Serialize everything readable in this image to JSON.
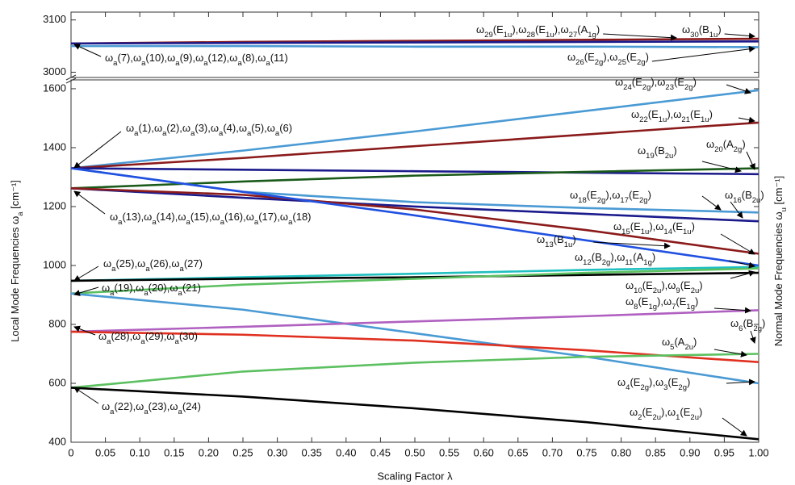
{
  "chart_data": [
    {
      "type": "line",
      "x": [
        0,
        0.25,
        0.5,
        0.75,
        1
      ],
      "xlim": [
        0,
        1
      ],
      "ylim": [
        2990,
        3115
      ],
      "yticks": [
        3000,
        3100
      ],
      "series": [
        {
          "color": "#8b1a1a",
          "values": [
            3055,
            3058,
            3060,
            3062,
            3064
          ]
        },
        {
          "color": "#1a1a8c",
          "values": [
            3055,
            3056,
            3057,
            3058,
            3059
          ]
        },
        {
          "color": "#4a9ad4",
          "values": [
            3050,
            3050,
            3049,
            3049,
            3048
          ]
        }
      ],
      "annotations": [
        "ω29(E1u),ω28(E1u),ω27(A1g)",
        "ω30(B1u)",
        "ωa(7),ωa(10),ωa(9),ωa(12),ωa(8),ωa(11)",
        "ω26(E2g),ω25(E2g)"
      ]
    },
    {
      "type": "line",
      "x": [
        0,
        0.25,
        0.5,
        0.75,
        1
      ],
      "xlim": [
        0,
        1
      ],
      "ylim": [
        400,
        1630
      ],
      "yticks": [
        400,
        600,
        800,
        1000,
        1200,
        1400,
        1600
      ],
      "xticks": [
        0,
        0.05,
        {
          "value": 0.1,
          "label": "0.10"
        },
        0.15,
        {
          "value": 0.2,
          "label": "0.20"
        },
        0.25,
        {
          "value": 0.3,
          "label": "0.30"
        },
        0.35,
        {
          "value": 0.4,
          "label": "0.40"
        },
        0.45,
        {
          "value": 0.5,
          "label": "0.50"
        },
        0.55,
        {
          "value": 0.6,
          "label": "0.60"
        },
        0.65,
        {
          "value": 0.7,
          "label": "0.70"
        },
        0.75,
        {
          "value": 0.8,
          "label": "0.80"
        },
        0.85,
        {
          "value": 0.9,
          "label": "0.90"
        },
        0.95,
        {
          "value": 1,
          "label": "1.00"
        }
      ],
      "x_label": "Scaling Factor λ",
      "y_label": "Local Mode Frequencies ωa [cm⁻¹]",
      "y2_label": "Normal Mode Frequencies ωu [cm⁻¹]",
      "series": [
        {
          "color": "#4a9ad4",
          "values": [
            1330,
            1390,
            1455,
            1525,
            1595
          ]
        },
        {
          "color": "#8b1a1a",
          "values": [
            1330,
            1365,
            1405,
            1445,
            1485
          ]
        },
        {
          "color": "#1a1a8c",
          "values": [
            1330,
            1325,
            1320,
            1315,
            1310
          ]
        },
        {
          "color": "#1a5a1a",
          "values": [
            1262,
            1285,
            1305,
            1318,
            1330
          ]
        },
        {
          "color": "#4a9ad4",
          "values": [
            1330,
            1250,
            1215,
            1195,
            1180
          ]
        },
        {
          "color": "#1a1a8c",
          "values": [
            1262,
            1230,
            1200,
            1175,
            1150
          ]
        },
        {
          "color": "#8b1a1a",
          "values": [
            1262,
            1240,
            1190,
            1120,
            1040
          ]
        },
        {
          "color": "#2050e0",
          "values": [
            1330,
            1250,
            1170,
            1085,
            1000
          ]
        },
        {
          "color": "#20c0c0",
          "values": [
            948,
            960,
            972,
            985,
            995
          ]
        },
        {
          "color": "#000000",
          "values": [
            948,
            955,
            960,
            968,
            975
          ]
        },
        {
          "color": "#5cc060",
          "values": [
            905,
            935,
            955,
            975,
            990
          ]
        },
        {
          "color": "#4a9ad4",
          "values": [
            905,
            850,
            770,
            690,
            600
          ]
        },
        {
          "color": "#b060c0",
          "values": [
            775,
            792,
            810,
            828,
            848
          ]
        },
        {
          "color": "#e03020",
          "values": [
            775,
            765,
            745,
            712,
            672
          ]
        },
        {
          "color": "#5cc060",
          "values": [
            585,
            640,
            670,
            690,
            700
          ]
        },
        {
          "color": "#000000",
          "values": [
            585,
            555,
            515,
            468,
            410
          ]
        }
      ],
      "annotations": [
        "ω24(E2g),ω23(E2g)",
        "ω22(E1u),ω21(E1u)",
        "ωa(1),ωa(2),ωa(3),ωa(4),ωa(5),ωa(6)",
        "ω20(A2g)",
        "ω19(B2u)",
        "ω18(E2g),ω17(E2g)",
        "ω16(B2u)",
        "ωa(13),ωa(14),ωa(15),ωa(16),ωa(17),ωa(18)",
        "ω15(E1u),ω14(E1u)",
        "ω13(B1u)",
        "ωa(25),ωa(26),ωa(27)",
        "ω12(B2g),ω11(A1g)",
        "ω10(E2u),ω9(E2u)",
        "ωa(19),ωa(20),ωa(21)",
        "ω8(E1g),ω7(E1g)",
        "ω6(B2g)",
        "ωa(28),ωa(29),ωa(30)",
        "ω5(A2u)",
        "ω4(E2g),ω3(E2g)",
        "ωa(22),ωa(23),ωa(24)",
        "ω2(E2u),ω1(E2u)"
      ]
    }
  ]
}
